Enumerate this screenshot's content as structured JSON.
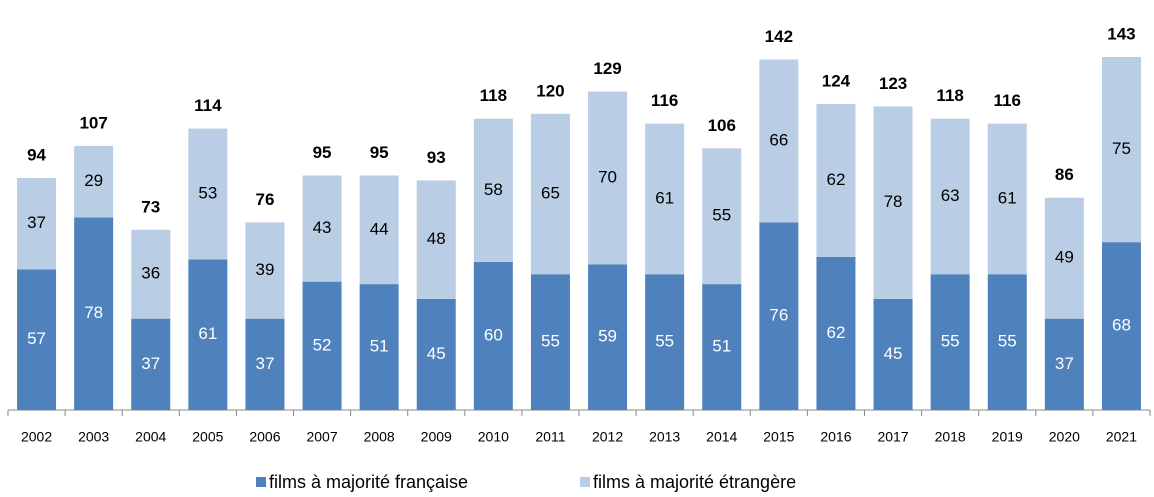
{
  "chart_data": {
    "type": "stacked_bar",
    "categories": [
      "2002",
      "2003",
      "2004",
      "2005",
      "2006",
      "2007",
      "2008",
      "2009",
      "2010",
      "2011",
      "2012",
      "2013",
      "2014",
      "2015",
      "2016",
      "2017",
      "2018",
      "2019",
      "2020",
      "2021"
    ],
    "series": [
      {
        "name": "films à majorité française",
        "color": "#4f81bd",
        "values": [
          57,
          78,
          37,
          61,
          37,
          52,
          51,
          45,
          60,
          55,
          59,
          55,
          51,
          76,
          62,
          45,
          55,
          55,
          37,
          68
        ]
      },
      {
        "name": "films à majorité étrangère",
        "color": "#b9cde5",
        "values": [
          37,
          29,
          36,
          53,
          39,
          43,
          44,
          48,
          58,
          65,
          70,
          61,
          55,
          66,
          62,
          78,
          63,
          61,
          49,
          75
        ]
      }
    ],
    "totals": [
      94,
      107,
      73,
      114,
      76,
      95,
      95,
      93,
      118,
      120,
      129,
      116,
      106,
      142,
      124,
      123,
      118,
      116,
      86,
      143
    ],
    "legend": "bottom"
  }
}
